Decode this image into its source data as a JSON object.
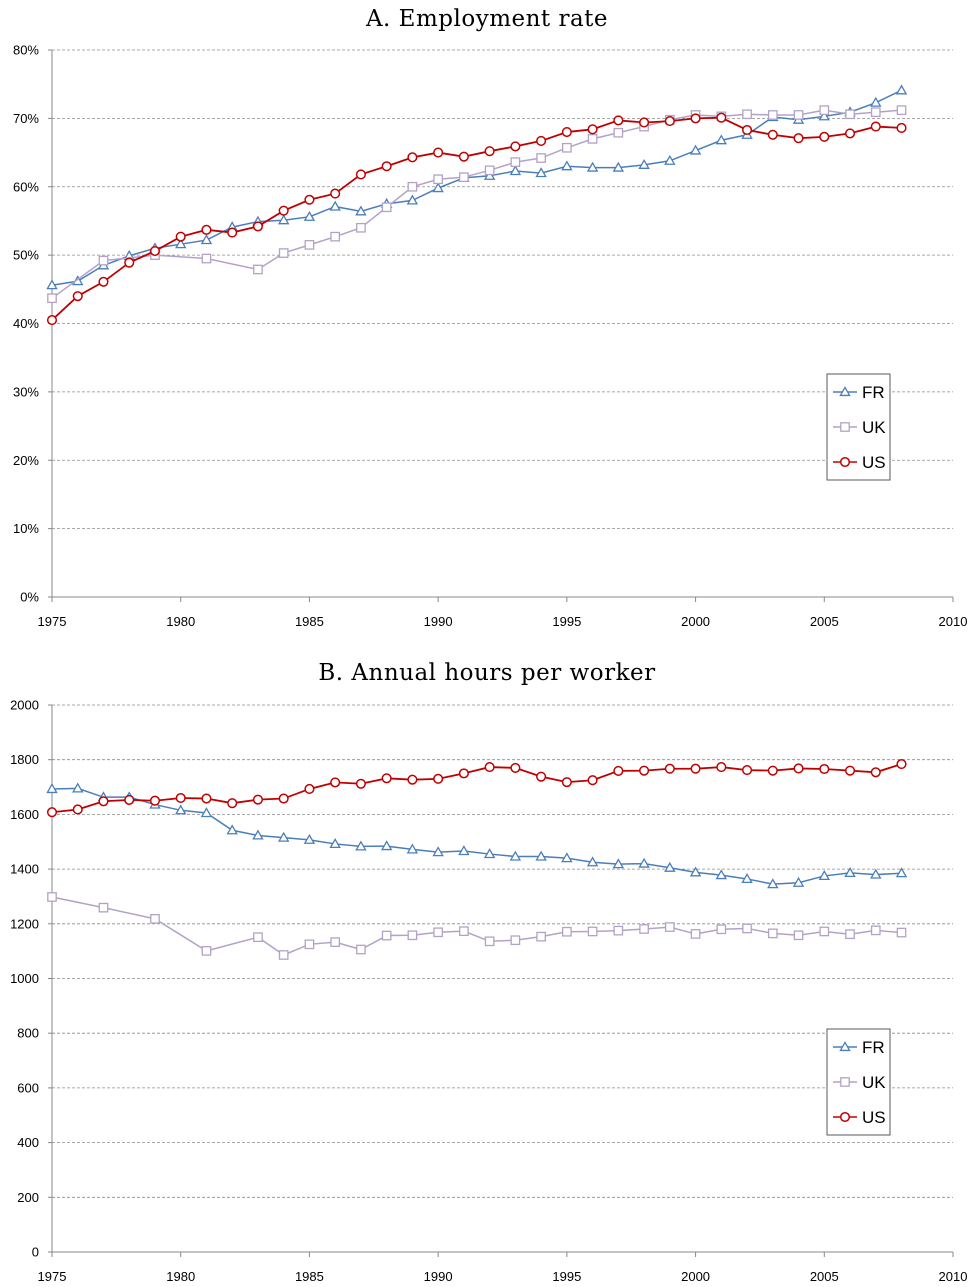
{
  "colors": {
    "FR": "#4a7ebb",
    "UK": "#b3a2c7",
    "US": "#c00000",
    "grid": "#8c8c8c",
    "axis": "#888888"
  },
  "chart_data": [
    {
      "type": "line",
      "title": "A. Employment rate",
      "x_ticks": [
        1975,
        1980,
        1985,
        1990,
        1995,
        2000,
        2005,
        2010
      ],
      "y_ticks": [
        "0%",
        "10%",
        "20%",
        "30%",
        "40%",
        "50%",
        "60%",
        "70%",
        "80%"
      ],
      "xlim": [
        1975,
        2010
      ],
      "ylim": [
        0,
        80
      ],
      "grid": "horizontal",
      "legend": "right",
      "series": [
        {
          "name": "FR",
          "marker": "triangle",
          "x": [
            1975,
            1976,
            1977,
            1978,
            1979,
            1980,
            1981,
            1982,
            1983,
            1984,
            1985,
            1986,
            1987,
            1988,
            1989,
            1990,
            1991,
            1992,
            1993,
            1994,
            1995,
            1996,
            1997,
            1998,
            1999,
            2000,
            2001,
            2002,
            2003,
            2004,
            2005,
            2006,
            2007,
            2008
          ],
          "y": [
            45.6,
            46.2,
            48.5,
            49.9,
            51.0,
            51.6,
            52.2,
            54.1,
            54.9,
            55.1,
            55.6,
            57.1,
            56.4,
            57.5,
            58.0,
            59.8,
            61.3,
            61.6,
            62.3,
            62.0,
            63.0,
            62.8,
            62.8,
            63.2,
            63.8,
            65.3,
            66.8,
            67.6,
            70.2,
            69.8,
            70.3,
            70.9,
            72.3,
            74.1
          ]
        },
        {
          "name": "UK",
          "marker": "square",
          "x": [
            1975,
            1977,
            1979,
            1981,
            1983,
            1984,
            1985,
            1986,
            1987,
            1988,
            1989,
            1990,
            1991,
            1992,
            1993,
            1994,
            1995,
            1996,
            1997,
            1998,
            1999,
            2000,
            2001,
            2002,
            2003,
            2004,
            2005,
            2006,
            2007,
            2008
          ],
          "y": [
            43.7,
            49.2,
            50.0,
            49.5,
            47.9,
            50.3,
            51.5,
            52.7,
            54.0,
            57.0,
            60.0,
            61.1,
            61.4,
            62.4,
            63.6,
            64.2,
            65.7,
            67.0,
            67.9,
            68.8,
            69.8,
            70.5,
            70.3,
            70.6,
            70.5,
            70.5,
            71.2,
            70.6,
            70.9,
            71.2
          ]
        },
        {
          "name": "US",
          "marker": "circle",
          "x": [
            1975,
            1976,
            1977,
            1978,
            1979,
            1980,
            1981,
            1982,
            1983,
            1984,
            1985,
            1986,
            1987,
            1988,
            1989,
            1990,
            1991,
            1992,
            1993,
            1994,
            1995,
            1996,
            1997,
            1998,
            1999,
            2000,
            2001,
            2002,
            2003,
            2004,
            2005,
            2006,
            2007,
            2008
          ],
          "y": [
            40.5,
            44.0,
            46.1,
            48.9,
            50.6,
            52.7,
            53.7,
            53.3,
            54.2,
            56.5,
            58.1,
            59.0,
            61.8,
            63.0,
            64.3,
            65.0,
            64.4,
            65.2,
            65.9,
            66.7,
            68.0,
            68.4,
            69.7,
            69.4,
            69.6,
            70.0,
            70.1,
            68.3,
            67.6,
            67.1,
            67.3,
            67.8,
            68.8,
            68.6
          ]
        }
      ]
    },
    {
      "type": "line",
      "title": "B. Annual hours per worker",
      "x_ticks": [
        1975,
        1980,
        1985,
        1990,
        1995,
        2000,
        2005,
        2010
      ],
      "y_ticks": [
        "0",
        "200",
        "400",
        "600",
        "800",
        "1000",
        "1200",
        "1400",
        "1600",
        "1800",
        "2000"
      ],
      "xlim": [
        1975,
        2010
      ],
      "ylim": [
        0,
        2000
      ],
      "grid": "horizontal",
      "legend": "right",
      "series": [
        {
          "name": "FR",
          "marker": "triangle",
          "x": [
            1975,
            1976,
            1977,
            1978,
            1979,
            1980,
            1981,
            1982,
            1983,
            1984,
            1985,
            1986,
            1987,
            1988,
            1989,
            1990,
            1991,
            1992,
            1993,
            1994,
            1995,
            1996,
            1997,
            1998,
            1999,
            2000,
            2001,
            2002,
            2003,
            2004,
            2005,
            2006,
            2007,
            2008
          ],
          "y": [
            1693,
            1695,
            1663,
            1663,
            1636,
            1615,
            1605,
            1542,
            1523,
            1515,
            1507,
            1492,
            1483,
            1484,
            1472,
            1462,
            1466,
            1455,
            1446,
            1446,
            1440,
            1425,
            1418,
            1420,
            1405,
            1388,
            1378,
            1364,
            1345,
            1350,
            1375,
            1386,
            1380,
            1385
          ]
        },
        {
          "name": "UK",
          "marker": "square",
          "x": [
            1975,
            1977,
            1979,
            1981,
            1983,
            1984,
            1985,
            1986,
            1987,
            1988,
            1989,
            1990,
            1991,
            1992,
            1993,
            1994,
            1995,
            1996,
            1997,
            1998,
            1999,
            2000,
            2001,
            2002,
            2003,
            2004,
            2005,
            2006,
            2007,
            2008
          ],
          "y": [
            1298,
            1259,
            1218,
            1101,
            1151,
            1086,
            1125,
            1133,
            1106,
            1157,
            1158,
            1169,
            1173,
            1136,
            1140,
            1153,
            1171,
            1172,
            1175,
            1181,
            1188,
            1163,
            1180,
            1183,
            1165,
            1158,
            1172,
            1162,
            1176,
            1168
          ]
        },
        {
          "name": "US",
          "marker": "circle",
          "x": [
            1975,
            1976,
            1977,
            1978,
            1979,
            1980,
            1981,
            1982,
            1983,
            1984,
            1985,
            1986,
            1987,
            1988,
            1989,
            1990,
            1991,
            1992,
            1993,
            1994,
            1995,
            1996,
            1997,
            1998,
            1999,
            2000,
            2001,
            2002,
            2003,
            2004,
            2005,
            2006,
            2007,
            2008
          ],
          "y": [
            1608,
            1618,
            1648,
            1653,
            1650,
            1660,
            1658,
            1641,
            1654,
            1658,
            1693,
            1717,
            1712,
            1732,
            1727,
            1730,
            1750,
            1773,
            1770,
            1738,
            1718,
            1725,
            1759,
            1760,
            1767,
            1767,
            1773,
            1762,
            1760,
            1768,
            1766,
            1760,
            1754,
            1784
          ]
        }
      ]
    }
  ]
}
